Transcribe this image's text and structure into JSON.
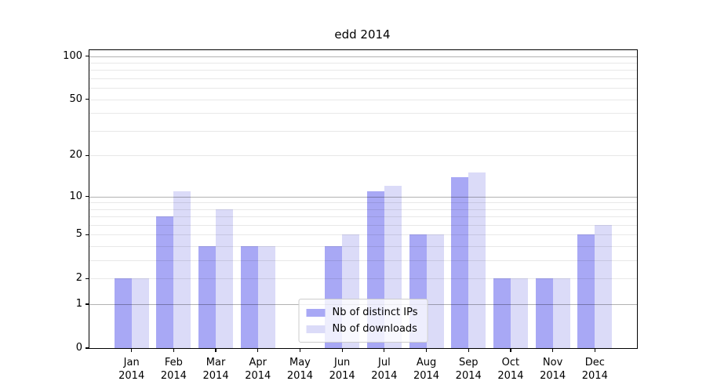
{
  "figure": {
    "background": "#ffffff"
  },
  "chart_data": {
    "type": "bar",
    "title": "edd 2014",
    "categories": [
      "Jan",
      "Feb",
      "Mar",
      "Apr",
      "May",
      "Jun",
      "Jul",
      "Aug",
      "Sep",
      "Oct",
      "Nov",
      "Dec"
    ],
    "category_year": "2014",
    "series": [
      {
        "name": "Nb of distinct IPs",
        "color": "#a8a8f5",
        "values": [
          2,
          7,
          4,
          4,
          0,
          4,
          11,
          5,
          14,
          2,
          2,
          5
        ]
      },
      {
        "name": "Nb of downloads",
        "color": "#dbdbf8",
        "values": [
          2,
          11,
          8,
          4,
          0,
          5,
          12,
          5,
          15,
          2,
          2,
          6
        ]
      }
    ],
    "yscale": "log1p",
    "ylim": [
      0,
      110
    ],
    "y_ticks": [
      0,
      1,
      2,
      5,
      10,
      20,
      50,
      100
    ],
    "grid_minor": [
      2,
      3,
      4,
      5,
      6,
      7,
      8,
      9,
      20,
      30,
      40,
      50,
      60,
      70,
      80,
      90
    ],
    "grid_major": [
      1,
      10,
      100
    ],
    "xlabel": "",
    "ylabel": "",
    "legend_position": "lower center",
    "axis_color": "#000000"
  }
}
